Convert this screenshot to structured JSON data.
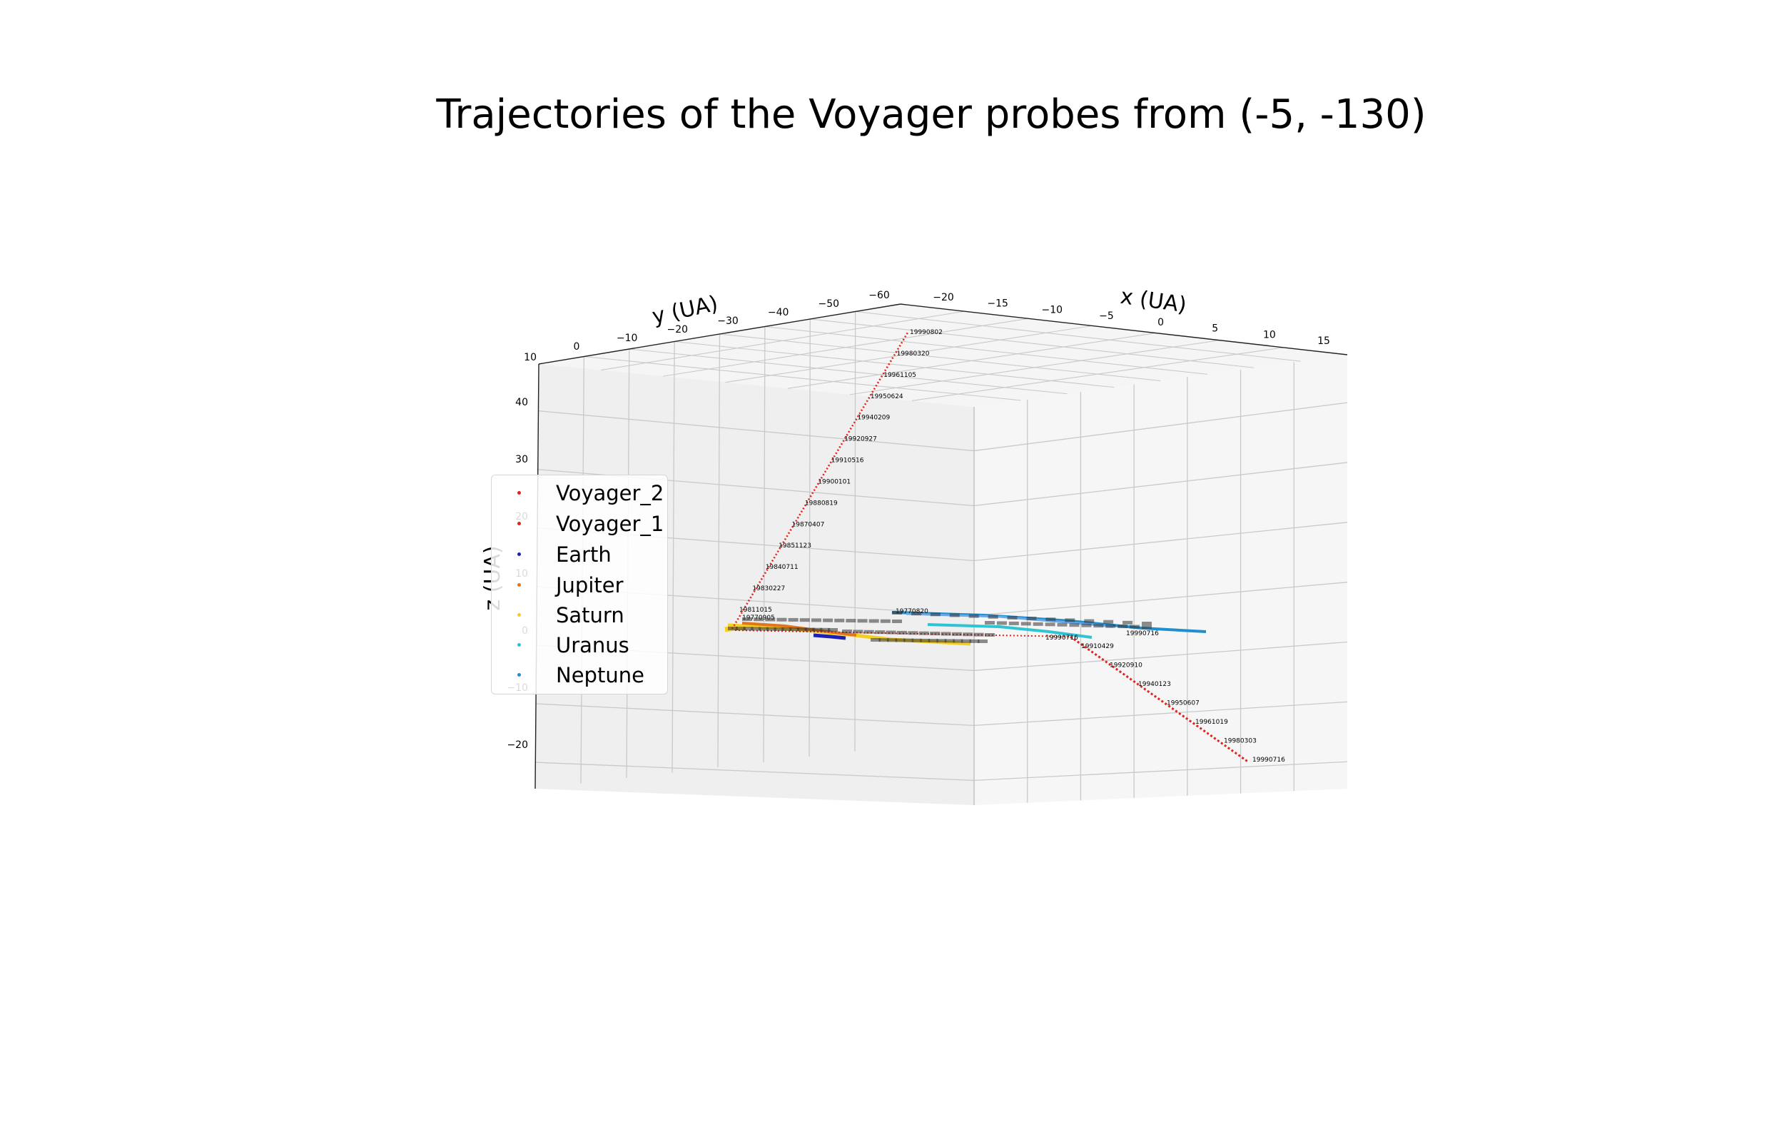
{
  "title": "Trajectories of the Voyager probes from (-5, -130)",
  "chart_data": {
    "type": "scatter",
    "projection": "3d",
    "title": "Trajectories of the Voyager probes from (-5, -130)",
    "xlabel": "x (UA)",
    "ylabel": "y (UA)",
    "zlabel": "z (UA)",
    "xlim": [
      -20,
      15
    ],
    "ylim": [
      10,
      -60
    ],
    "zlim": [
      -20,
      40
    ],
    "x_ticks": [
      "−20",
      "−15",
      "−10",
      "−5",
      "0",
      "5",
      "10",
      "15"
    ],
    "y_ticks": [
      "0",
      "−10",
      "−20",
      "−30",
      "−40",
      "−50",
      "−60"
    ],
    "z_ticks": [
      "40",
      "30",
      "20",
      "10",
      "0",
      "−10",
      "−20"
    ],
    "grid": true,
    "legend_position": "center-left",
    "series": [
      {
        "name": "Voyager_2",
        "color": "#e3221c"
      },
      {
        "name": "Voyager_1",
        "color": "#e3221c"
      },
      {
        "name": "Earth",
        "color": "#1f1fb4"
      },
      {
        "name": "Jupiter",
        "color": "#e0761c"
      },
      {
        "name": "Saturn",
        "color": "#f5cf1e"
      },
      {
        "name": "Uranus",
        "color": "#2ec4d4"
      },
      {
        "name": "Neptune",
        "color": "#1f8fd0"
      }
    ],
    "voyager_1_labels": [
      "19990802",
      "19980320",
      "19961105",
      "19950624",
      "19940209",
      "19920927",
      "19910516",
      "19900101",
      "19880819",
      "19870407",
      "19851123",
      "19840711",
      "19830227",
      "19811015"
    ],
    "voyager_2_labels": [
      "19910429",
      "19920910",
      "19940123",
      "19950607",
      "19961019",
      "19980303",
      "19990716"
    ],
    "plane_labels": [
      "19770820",
      "19770905",
      "19990716",
      "19990716"
    ]
  }
}
